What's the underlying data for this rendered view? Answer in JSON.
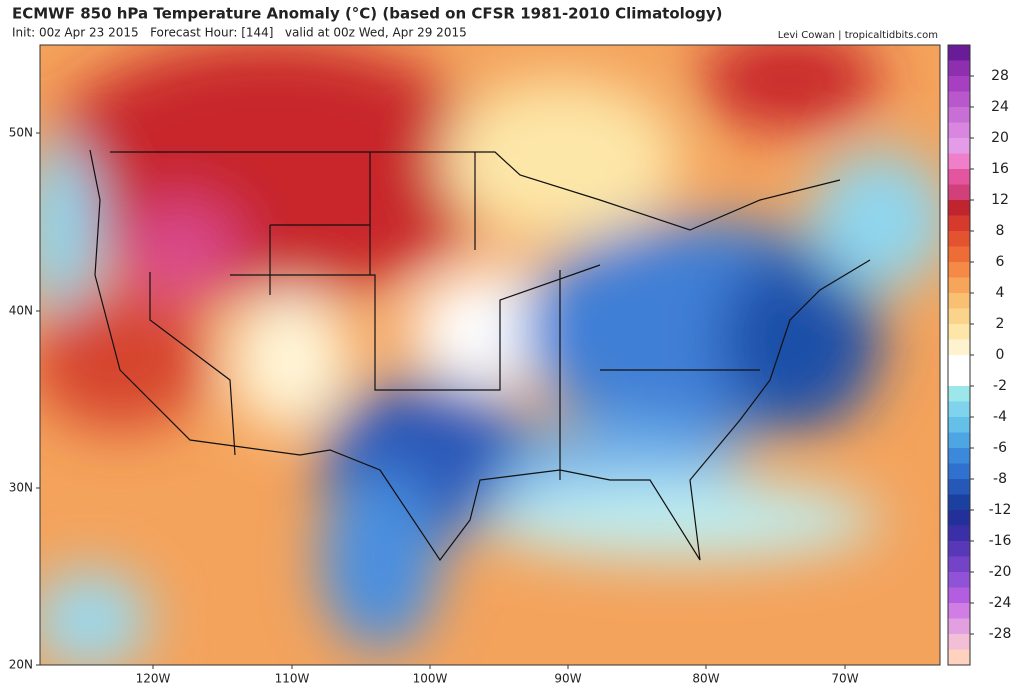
{
  "header": {
    "title": "ECMWF 850 hPa Temperature Anomaly (°C) (based on CFSR 1981-2010 Climatology)",
    "subtitle": "Init: 00z Apr 23 2015   Forecast Hour: [144]   valid at 00z Wed, Apr 29 2015",
    "credit": "Levi Cowan | tropicaltidbits.com"
  },
  "map": {
    "lat_labels": [
      "50N",
      "40N",
      "30N",
      "20N"
    ],
    "lon_labels": [
      "120W",
      "110W",
      "100W",
      "90W",
      "80W",
      "70W"
    ]
  },
  "colorbar": {
    "labels": [
      28,
      24,
      20,
      16,
      12,
      8,
      6,
      4,
      2,
      0,
      -2,
      -4,
      -6,
      -8,
      -12,
      -16,
      -20,
      -24,
      -28
    ]
  }
}
